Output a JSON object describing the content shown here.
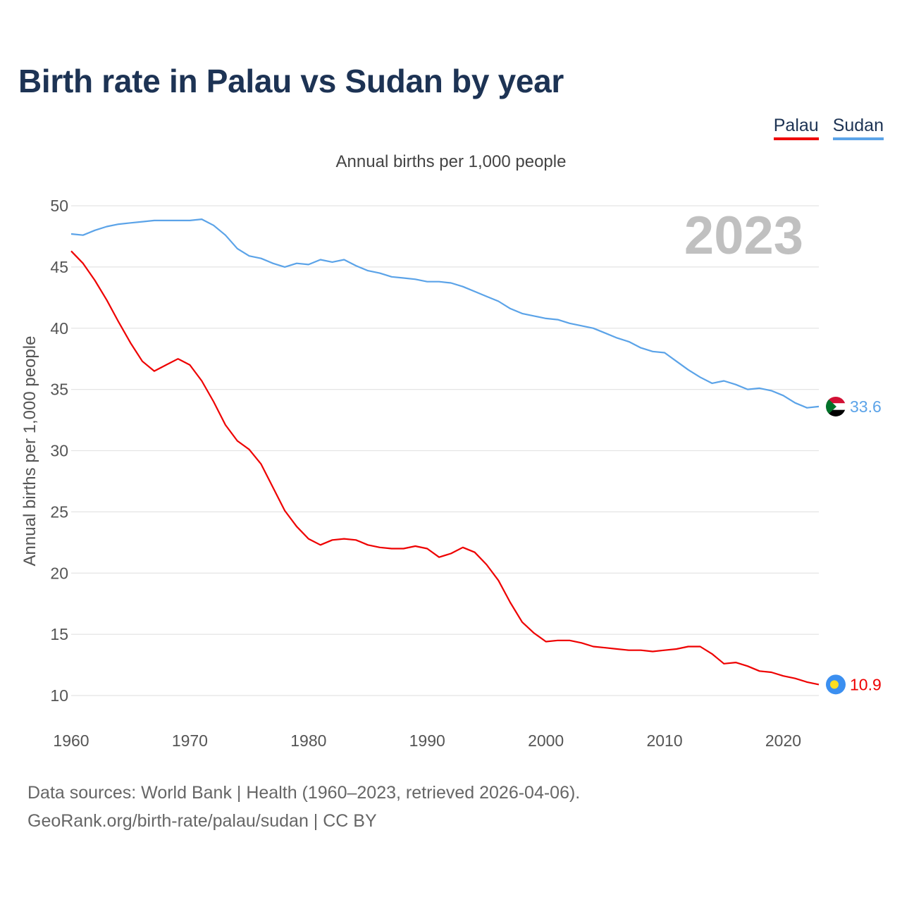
{
  "title": "Birth rate in Palau vs Sudan by year",
  "subtitle": "Annual births per 1,000 people",
  "legend": [
    {
      "name": "Palau",
      "color": "#ee0000"
    },
    {
      "name": "Sudan",
      "color": "#5ba3e8"
    }
  ],
  "year_label": "2023",
  "footer": {
    "line1": "Data sources: World Bank | Health (1960–2023, retrieved 2026-04-06).",
    "line2": "GeoRank.org/birth-rate/palau/sudan | CC BY"
  },
  "chart_data": {
    "type": "line",
    "title": "Birth rate in Palau vs Sudan by year",
    "xlabel": "",
    "ylabel": "Annual births per 1,000 people",
    "xlim": [
      1960,
      2023
    ],
    "ylim": [
      10,
      50
    ],
    "xticks": [
      1960,
      1970,
      1980,
      1990,
      2000,
      2010,
      2020
    ],
    "yticks": [
      10,
      15,
      20,
      25,
      30,
      35,
      40,
      45,
      50
    ],
    "grid": true,
    "legend_position": "top-right",
    "x": [
      1960,
      1961,
      1962,
      1963,
      1964,
      1965,
      1966,
      1967,
      1968,
      1969,
      1970,
      1971,
      1972,
      1973,
      1974,
      1975,
      1976,
      1977,
      1978,
      1979,
      1980,
      1981,
      1982,
      1983,
      1984,
      1985,
      1986,
      1987,
      1988,
      1989,
      1990,
      1991,
      1992,
      1993,
      1994,
      1995,
      1996,
      1997,
      1998,
      1999,
      2000,
      2001,
      2002,
      2003,
      2004,
      2005,
      2006,
      2007,
      2008,
      2009,
      2010,
      2011,
      2012,
      2013,
      2014,
      2015,
      2016,
      2017,
      2018,
      2019,
      2020,
      2021,
      2022,
      2023
    ],
    "series": [
      {
        "name": "Palau",
        "color": "#ee0000",
        "last_value_label": "10.9",
        "values": [
          46.3,
          45.3,
          43.9,
          42.3,
          40.5,
          38.8,
          37.3,
          36.5,
          37.0,
          37.5,
          37.0,
          35.7,
          34.0,
          32.1,
          30.8,
          30.1,
          28.9,
          27.0,
          25.1,
          23.8,
          22.8,
          22.3,
          22.7,
          22.8,
          22.7,
          22.3,
          22.1,
          22.0,
          22.0,
          22.2,
          22.0,
          21.3,
          21.6,
          22.1,
          21.7,
          20.7,
          19.4,
          17.6,
          16.0,
          15.1,
          14.4,
          14.5,
          14.5,
          14.3,
          14.0,
          13.9,
          13.8,
          13.7,
          13.7,
          13.6,
          13.7,
          13.8,
          14.0,
          14.0,
          13.4,
          12.6,
          12.7,
          12.4,
          12.0,
          11.9,
          11.6,
          11.4,
          11.1,
          10.9
        ]
      },
      {
        "name": "Sudan",
        "color": "#5ba3e8",
        "last_value_label": "33.6",
        "values": [
          47.7,
          47.6,
          48.0,
          48.3,
          48.5,
          48.6,
          48.7,
          48.8,
          48.8,
          48.8,
          48.8,
          48.9,
          48.4,
          47.6,
          46.5,
          45.9,
          45.7,
          45.3,
          45.0,
          45.3,
          45.2,
          45.6,
          45.4,
          45.6,
          45.1,
          44.7,
          44.5,
          44.2,
          44.1,
          44.0,
          43.8,
          43.8,
          43.7,
          43.4,
          43.0,
          42.6,
          42.2,
          41.6,
          41.2,
          41.0,
          40.8,
          40.7,
          40.4,
          40.2,
          40.0,
          39.6,
          39.2,
          38.9,
          38.4,
          38.1,
          38.0,
          37.3,
          36.6,
          36.0,
          35.5,
          35.7,
          35.4,
          35.0,
          35.1,
          34.9,
          34.5,
          33.9,
          33.5,
          33.6
        ]
      }
    ]
  }
}
